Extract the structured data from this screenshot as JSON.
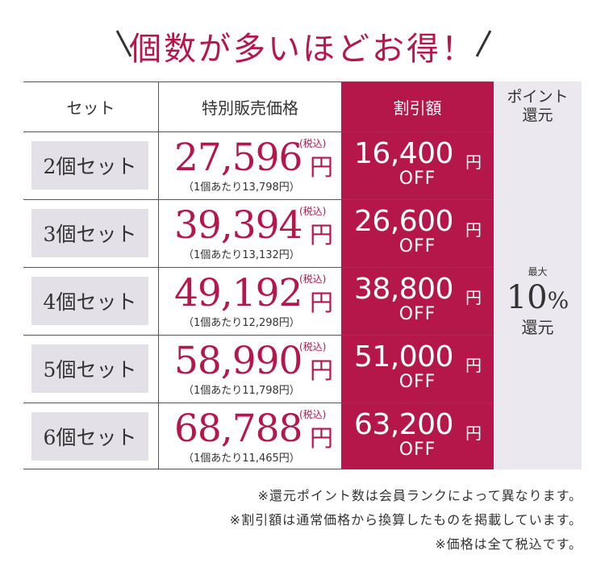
{
  "title": "個数が多いほどお得！",
  "header": {
    "set": "セット",
    "price": "特別販売価格",
    "discount": "割引額",
    "points_line1": "ポイント",
    "points_line2": "還元"
  },
  "rows": [
    {
      "set": "2個セット",
      "price": "27,596",
      "unit": "（1個あたり13,798円）",
      "discount": "16,400"
    },
    {
      "set": "3個セット",
      "price": "39,394",
      "unit": "（1個あたり13,132円）",
      "discount": "26,600"
    },
    {
      "set": "4個セット",
      "price": "49,192",
      "unit": "（1個あたり12,298円）",
      "discount": "38,800"
    },
    {
      "set": "5個セット",
      "price": "58,990",
      "unit": "（1個あたり11,798円）",
      "discount": "51,000"
    },
    {
      "set": "6個セット",
      "price": "68,788",
      "unit": "（1個あたり11,465円）",
      "discount": "63,200"
    }
  ],
  "labels": {
    "yen": "円",
    "tax_included": "(税込)",
    "off": "OFF"
  },
  "points": {
    "max": "最大",
    "percent": "10",
    "percent_sign": "%",
    "return": "還元"
  },
  "notes": [
    "※還元ポイント数は会員ランクによって異なります。",
    "※割引額は通常価格から換算したものを掲載しています。",
    "※価格は全て税込です。"
  ]
}
